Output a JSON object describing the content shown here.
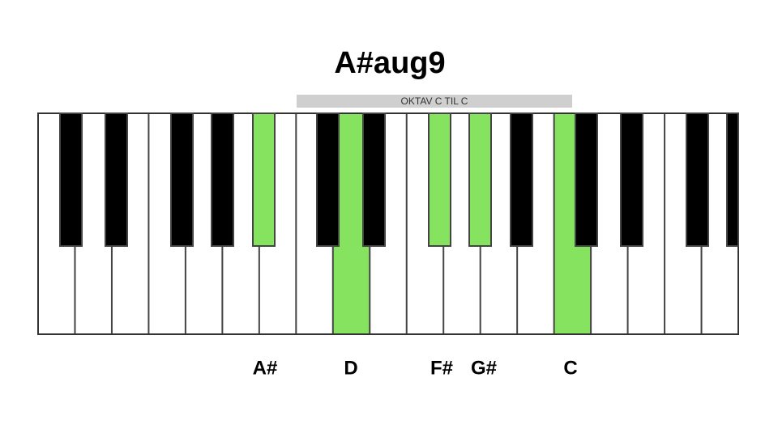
{
  "header": {
    "title": "A#aug9",
    "range_label": "OKTAV C TIL C"
  },
  "notes": [
    {
      "label": "A#"
    },
    {
      "label": "D"
    },
    {
      "label": "F#"
    },
    {
      "label": "G#"
    },
    {
      "label": "C"
    }
  ]
}
